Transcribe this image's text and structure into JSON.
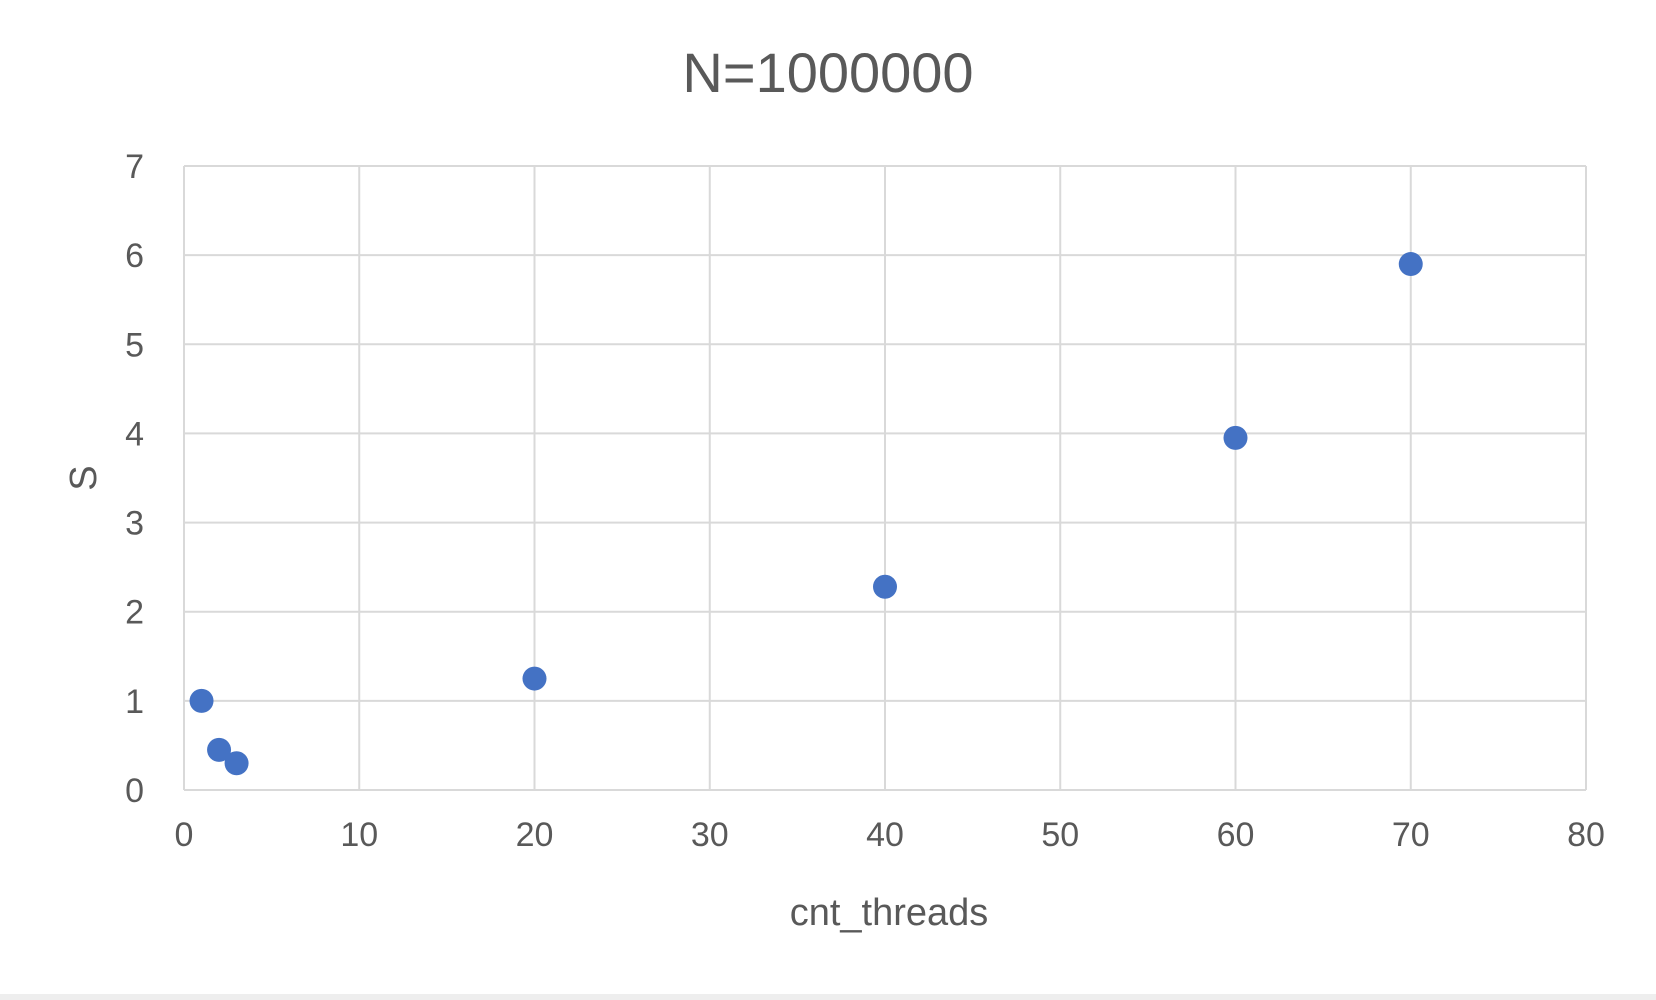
{
  "chart_data": {
    "type": "scatter",
    "title": "N=1000000",
    "xlabel": "cnt_threads",
    "ylabel": "S",
    "xlim": [
      0,
      80
    ],
    "ylim": [
      0,
      7
    ],
    "x_ticks": [
      "0",
      "10",
      "20",
      "30",
      "40",
      "50",
      "60",
      "70",
      "80"
    ],
    "y_ticks": [
      "0",
      "1",
      "2",
      "3",
      "4",
      "5",
      "6",
      "7"
    ],
    "grid": true,
    "legend": "none",
    "series": [
      {
        "color": "#4472c4",
        "points": [
          {
            "x": 1,
            "y": 1.0
          },
          {
            "x": 2,
            "y": 0.45
          },
          {
            "x": 3,
            "y": 0.3
          },
          {
            "x": 20,
            "y": 1.25
          },
          {
            "x": 40,
            "y": 2.28
          },
          {
            "x": 60,
            "y": 3.95
          },
          {
            "x": 70,
            "y": 5.9
          }
        ]
      }
    ]
  }
}
